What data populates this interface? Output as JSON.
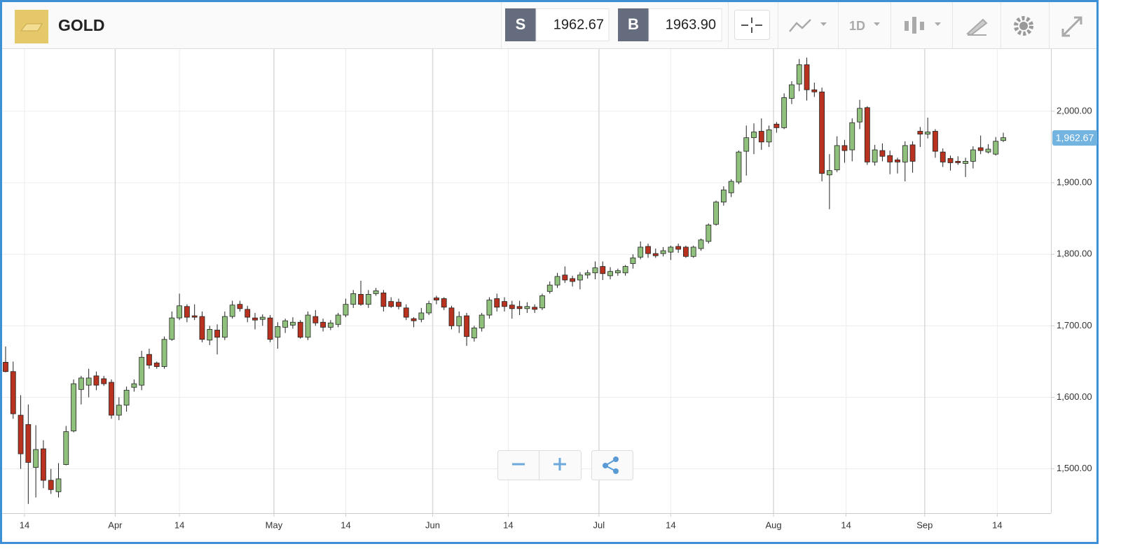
{
  "header": {
    "symbol": "GOLD",
    "sell_label": "S",
    "sell_price": "1962.67",
    "buy_label": "B",
    "buy_price": "1963.90",
    "timeframe": "1D"
  },
  "chart_data": {
    "type": "candlestick",
    "categories": [
      null,
      null,
      null,
      null,
      null,
      null,
      null,
      null,
      null,
      null,
      null,
      null,
      null,
      null,
      null,
      null,
      null,
      null,
      null,
      null,
      null,
      null,
      null,
      null,
      null,
      null,
      null,
      null,
      null,
      null,
      null,
      null,
      null,
      null,
      null,
      null,
      null,
      null,
      null,
      null,
      null,
      null,
      null,
      null,
      null,
      null,
      null,
      null,
      null,
      null,
      null,
      null,
      null,
      null,
      null,
      null,
      null,
      null,
      null,
      null,
      null,
      null,
      null,
      null,
      null,
      null,
      null,
      null,
      null,
      null,
      null,
      null,
      null,
      null,
      null,
      null,
      null,
      null,
      null,
      null,
      null,
      null,
      null,
      null,
      null,
      null,
      null,
      null,
      null,
      null,
      null,
      null,
      null,
      null,
      null,
      null,
      null,
      null,
      null,
      null,
      null,
      null,
      null,
      null,
      null,
      null,
      null,
      null,
      null,
      null,
      null,
      null,
      null,
      null,
      null,
      null,
      null,
      null,
      null,
      null,
      null,
      null,
      null,
      null,
      null,
      null,
      null,
      null,
      null,
      null,
      null,
      null,
      null
    ],
    "open": [
      1649,
      1636,
      1575,
      1562,
      1502,
      1528,
      1484,
      1468,
      1506,
      1553,
      1611,
      1617,
      1630,
      1626,
      1621,
      1575,
      1589,
      1614,
      1617,
      1660,
      1648,
      1643,
      1681,
      1711,
      1727,
      1714,
      1713,
      1680,
      1694,
      1684,
      1713,
      1730,
      1723,
      1711,
      1709,
      1711,
      1684,
      1698,
      1701,
      1705,
      1684,
      1713,
      1705,
      1698,
      1702,
      1715,
      1730,
      1744,
      1730,
      1745,
      1746,
      1734,
      1733,
      1725,
      1710,
      1709,
      1718,
      1739,
      1738,
      1725,
      1700,
      1714,
      1683,
      1697,
      1715,
      1738,
      1734,
      1729,
      1727,
      1724,
      1726,
      1725,
      1748,
      1757,
      1771,
      1766,
      1764,
      1771,
      1774,
      1783,
      1770,
      1774,
      1774,
      1787,
      1796,
      1811,
      1801,
      1801,
      1803,
      1811,
      1810,
      1797,
      1808,
      1818,
      1842,
      1873,
      1886,
      1901,
      1944,
      1963,
      1972,
      1957,
      1982,
      1977,
      2018,
      2038,
      2065,
      2030,
      2027,
      1911,
      1918,
      1952,
      1946,
      1985,
      2005,
      1929,
      1945,
      1938,
      1932,
      1929,
      1953,
      1972,
      1968,
      1972,
      1943,
      1934,
      1930,
      1927,
      1930,
      1949,
      1943,
      1940,
      1959
    ],
    "high": [
      1671,
      1650,
      1603,
      1590,
      1561,
      1540,
      1500,
      1508,
      1560,
      1625,
      1630,
      1640,
      1636,
      1630,
      1625,
      1600,
      1615,
      1625,
      1665,
      1668,
      1650,
      1685,
      1720,
      1745,
      1730,
      1730,
      1720,
      1700,
      1702,
      1720,
      1735,
      1735,
      1728,
      1718,
      1716,
      1715,
      1705,
      1710,
      1712,
      1708,
      1720,
      1722,
      1710,
      1708,
      1718,
      1738,
      1750,
      1763,
      1750,
      1753,
      1750,
      1740,
      1738,
      1730,
      1712,
      1725,
      1735,
      1742,
      1740,
      1728,
      1720,
      1718,
      1700,
      1718,
      1740,
      1745,
      1740,
      1735,
      1735,
      1733,
      1730,
      1745,
      1762,
      1774,
      1783,
      1770,
      1775,
      1778,
      1790,
      1790,
      1782,
      1780,
      1785,
      1800,
      1818,
      1815,
      1808,
      1810,
      1812,
      1815,
      1812,
      1812,
      1822,
      1843,
      1875,
      1895,
      1905,
      1945,
      1980,
      1983,
      1990,
      1980,
      1985,
      2025,
      2042,
      2073,
      2075,
      2040,
      2033,
      1940,
      1965,
      1960,
      1990,
      2016,
      2007,
      1953,
      1955,
      1945,
      1935,
      1958,
      1958,
      1978,
      1991,
      1975,
      1948,
      1938,
      1937,
      1935,
      1951,
      1966,
      1954,
      1964,
      1970
    ],
    "low": [
      1635,
      1570,
      1500,
      1451,
      1460,
      1473,
      1465,
      1460,
      1505,
      1551,
      1590,
      1600,
      1610,
      1616,
      1570,
      1568,
      1580,
      1608,
      1610,
      1640,
      1640,
      1640,
      1679,
      1708,
      1705,
      1708,
      1677,
      1673,
      1660,
      1680,
      1710,
      1720,
      1705,
      1695,
      1700,
      1677,
      1668,
      1690,
      1696,
      1682,
      1680,
      1700,
      1692,
      1694,
      1698,
      1712,
      1725,
      1728,
      1725,
      1742,
      1720,
      1725,
      1723,
      1708,
      1698,
      1705,
      1715,
      1730,
      1722,
      1695,
      1690,
      1672,
      1678,
      1692,
      1710,
      1720,
      1720,
      1710,
      1715,
      1718,
      1718,
      1722,
      1745,
      1753,
      1760,
      1755,
      1751,
      1766,
      1765,
      1764,
      1765,
      1770,
      1770,
      1780,
      1793,
      1795,
      1795,
      1797,
      1792,
      1802,
      1795,
      1795,
      1805,
      1815,
      1840,
      1868,
      1880,
      1898,
      1910,
      1940,
      1946,
      1950,
      1970,
      1975,
      2010,
      2028,
      2015,
      2020,
      1902,
      1863,
      1915,
      1928,
      1930,
      1975,
      1925,
      1924,
      1930,
      1912,
      1913,
      1902,
      1914,
      1950,
      1962,
      1935,
      1922,
      1917,
      1925,
      1908,
      1920,
      1940,
      1941,
      1938,
      1957
    ],
    "close": [
      1636,
      1577,
      1521,
      1509,
      1527,
      1484,
      1471,
      1486,
      1552,
      1619,
      1627,
      1627,
      1617,
      1619,
      1575,
      1589,
      1610,
      1619,
      1656,
      1645,
      1643,
      1681,
      1711,
      1728,
      1712,
      1712,
      1681,
      1695,
      1684,
      1713,
      1729,
      1724,
      1712,
      1708,
      1712,
      1681,
      1699,
      1707,
      1705,
      1684,
      1715,
      1704,
      1698,
      1704,
      1715,
      1730,
      1745,
      1730,
      1744,
      1749,
      1727,
      1727,
      1727,
      1712,
      1707,
      1718,
      1731,
      1736,
      1726,
      1700,
      1713,
      1685,
      1697,
      1715,
      1736,
      1726,
      1727,
      1724,
      1724,
      1727,
      1723,
      1742,
      1757,
      1769,
      1764,
      1762,
      1771,
      1774,
      1781,
      1773,
      1776,
      1777,
      1783,
      1795,
      1810,
      1801,
      1798,
      1805,
      1810,
      1807,
      1797,
      1810,
      1820,
      1841,
      1873,
      1890,
      1902,
      1943,
      1963,
      1971,
      1957,
      1974,
      1977,
      2019,
      2037,
      2065,
      2030,
      2027,
      1913,
      1917,
      1952,
      1945,
      1984,
      2004,
      1929,
      1946,
      1937,
      1929,
      1929,
      1952,
      1930,
      1968,
      1971,
      1944,
      1929,
      1928,
      1928,
      1930,
      1946,
      1945,
      1947,
      1958,
      1963
    ],
    "up_color": "#8fc07c",
    "down_color": "#b8321f",
    "xlim": [
      -0.74,
      138.3
    ],
    "xticks": [
      {
        "value": 2.5,
        "label": "14"
      },
      {
        "value": 14.5,
        "label": "Apr"
      },
      {
        "value": 23,
        "label": "14"
      },
      {
        "value": 35.5,
        "label": "May"
      },
      {
        "value": 45,
        "label": "14"
      },
      {
        "value": 56.5,
        "label": "Jun"
      },
      {
        "value": 66.5,
        "label": "14"
      },
      {
        "value": 78.5,
        "label": "Jul"
      },
      {
        "value": 88,
        "label": "14"
      },
      {
        "value": 101.6,
        "label": "Aug"
      },
      {
        "value": 111.2,
        "label": "14"
      },
      {
        "value": 121.6,
        "label": "Sep"
      },
      {
        "value": 131.2,
        "label": "14"
      }
    ],
    "ylim": [
      1438,
      2087
    ],
    "yticks": [
      {
        "value": 1500,
        "label": "1,500.00"
      },
      {
        "value": 1600,
        "label": "1,600.00"
      },
      {
        "value": 1700,
        "label": "1,700.00"
      },
      {
        "value": 1800,
        "label": "1,800.00"
      },
      {
        "value": 1900,
        "label": "1,900.00"
      },
      {
        "value": 2000,
        "label": "2,000.00"
      }
    ],
    "last_price": {
      "value": 1962.67,
      "label": "1,962.67"
    },
    "grid": true
  }
}
